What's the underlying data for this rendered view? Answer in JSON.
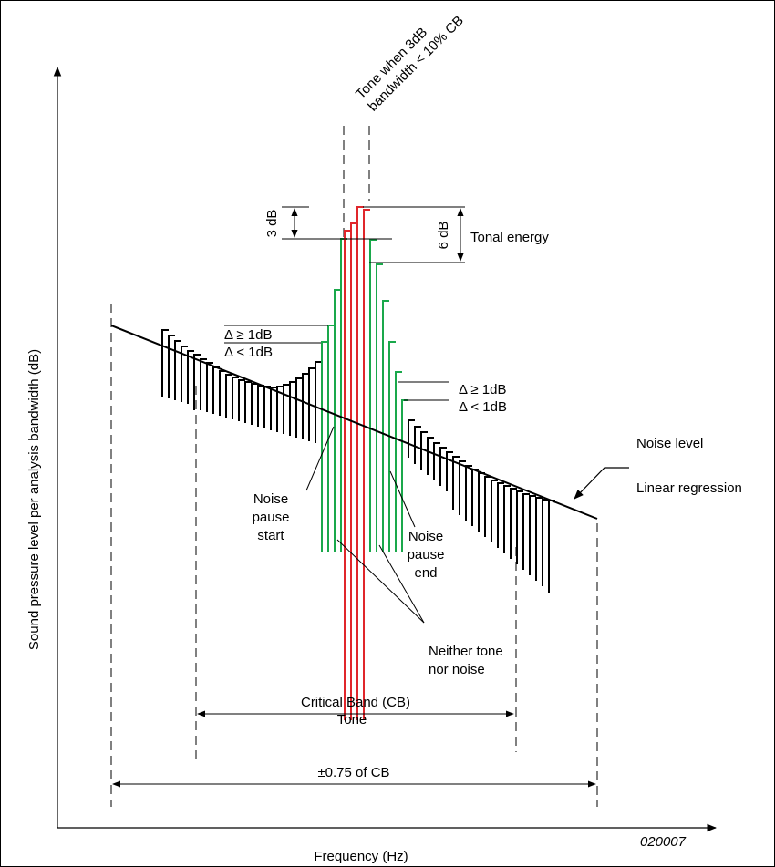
{
  "axes": {
    "y_label": "Sound pressure level per analysis  bandwidth (dB)",
    "x_label": "Frequency (Hz)"
  },
  "labels": {
    "tone_when": "Tone when 3dB",
    "tone_bandwidth": "bandwidth < 10% CB",
    "three_db": "3 dB",
    "six_db": "6 dB",
    "tonal_energy": "Tonal energy",
    "delta_ge_left": "Δ ≥ 1dB",
    "delta_lt_left": "Δ < 1dB",
    "delta_ge_right": "Δ ≥ 1dB",
    "delta_lt_right": "Δ < 1dB",
    "noise_level_1": "Noise level",
    "noise_level_2": "Linear regression",
    "noise_pause_start": [
      "Noise",
      "pause",
      "start"
    ],
    "noise_pause_end": [
      "Noise",
      "pause",
      "end"
    ],
    "neither": [
      "Neither tone",
      "nor noise"
    ],
    "tone": "Tone",
    "critical_band": "Critical Band (CB)",
    "pm_cb": "±0.75 of CB",
    "figure_id": "020007"
  },
  "colors": {
    "noise": "#000000",
    "pause": "#1aa84b",
    "tone": "#e0262b"
  }
}
